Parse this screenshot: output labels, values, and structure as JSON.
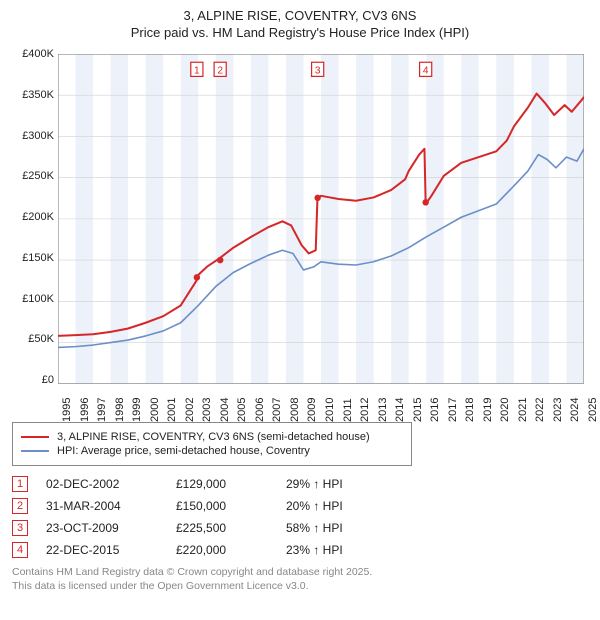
{
  "title_line1": "3, ALPINE RISE, COVENTRY, CV3 6NS",
  "title_line2": "Price paid vs. HM Land Registry's House Price Index (HPI)",
  "title_fontsize": 13,
  "chart": {
    "type": "line",
    "background_color": "#ffffff",
    "plot_background": "#ffffff",
    "altband_color": "#edf2fa",
    "grid_color": "#d0d0d0",
    "ylim": [
      0,
      400000
    ],
    "ytick_step": 50000,
    "yticks_labels": [
      "£0",
      "£50K",
      "£100K",
      "£150K",
      "£200K",
      "£250K",
      "£300K",
      "£350K",
      "£400K"
    ],
    "xlim": [
      1995,
      2025
    ],
    "xticks": [
      1995,
      1996,
      1997,
      1998,
      1999,
      2000,
      2001,
      2002,
      2003,
      2004,
      2005,
      2006,
      2007,
      2008,
      2009,
      2010,
      2011,
      2012,
      2013,
      2014,
      2015,
      2016,
      2017,
      2018,
      2019,
      2020,
      2021,
      2022,
      2023,
      2024,
      2025
    ],
    "label_fontsize": 11,
    "series": [
      {
        "name": "3, ALPINE RISE, COVENTRY, CV3 6NS (semi-detached house)",
        "color": "#d62728",
        "line_width": 2,
        "points": [
          [
            1995,
            58000
          ],
          [
            1996,
            59000
          ],
          [
            1997,
            60000
          ],
          [
            1998,
            63000
          ],
          [
            1999,
            67000
          ],
          [
            2000,
            74000
          ],
          [
            2001,
            82000
          ],
          [
            2002,
            95000
          ],
          [
            2002.9,
            125000
          ],
          [
            2003,
            132000
          ],
          [
            2003.5,
            142000
          ],
          [
            2004.2,
            152000
          ],
          [
            2005,
            165000
          ],
          [
            2006,
            178000
          ],
          [
            2007,
            190000
          ],
          [
            2007.8,
            197000
          ],
          [
            2008.3,
            192000
          ],
          [
            2008.9,
            168000
          ],
          [
            2009.3,
            158000
          ],
          [
            2009.7,
            162000
          ],
          [
            2009.8,
            225000
          ],
          [
            2010,
            228000
          ],
          [
            2011,
            224000
          ],
          [
            2012,
            222000
          ],
          [
            2013,
            226000
          ],
          [
            2014,
            235000
          ],
          [
            2014.8,
            248000
          ],
          [
            2015,
            258000
          ],
          [
            2015.6,
            278000
          ],
          [
            2015.9,
            285000
          ],
          [
            2015.97,
            218000
          ],
          [
            2016.3,
            228000
          ],
          [
            2017,
            252000
          ],
          [
            2018,
            268000
          ],
          [
            2019,
            275000
          ],
          [
            2020,
            282000
          ],
          [
            2020.6,
            295000
          ],
          [
            2021,
            312000
          ],
          [
            2021.8,
            335000
          ],
          [
            2022.3,
            352000
          ],
          [
            2022.8,
            340000
          ],
          [
            2023.3,
            326000
          ],
          [
            2023.9,
            338000
          ],
          [
            2024.3,
            330000
          ],
          [
            2024.9,
            345000
          ],
          [
            2025,
            348000
          ]
        ]
      },
      {
        "name": "HPI: Average price, semi-detached house, Coventry",
        "color": "#6b8fc9",
        "line_width": 1.6,
        "points": [
          [
            1995,
            44000
          ],
          [
            1996,
            45000
          ],
          [
            1997,
            47000
          ],
          [
            1998,
            50000
          ],
          [
            1999,
            53000
          ],
          [
            2000,
            58000
          ],
          [
            2001,
            64000
          ],
          [
            2002,
            74000
          ],
          [
            2003,
            95000
          ],
          [
            2004,
            118000
          ],
          [
            2005,
            135000
          ],
          [
            2006,
            146000
          ],
          [
            2007,
            156000
          ],
          [
            2007.8,
            162000
          ],
          [
            2008.4,
            158000
          ],
          [
            2009,
            138000
          ],
          [
            2009.6,
            142000
          ],
          [
            2010,
            148000
          ],
          [
            2011,
            145000
          ],
          [
            2012,
            144000
          ],
          [
            2013,
            148000
          ],
          [
            2014,
            155000
          ],
          [
            2015,
            165000
          ],
          [
            2016,
            178000
          ],
          [
            2017,
            190000
          ],
          [
            2018,
            202000
          ],
          [
            2019,
            210000
          ],
          [
            2020,
            218000
          ],
          [
            2021,
            240000
          ],
          [
            2021.8,
            258000
          ],
          [
            2022.4,
            278000
          ],
          [
            2022.9,
            272000
          ],
          [
            2023.4,
            262000
          ],
          [
            2024,
            275000
          ],
          [
            2024.6,
            270000
          ],
          [
            2025,
            285000
          ]
        ]
      }
    ],
    "sale_markers": [
      {
        "num": "1",
        "x": 2002.92,
        "y": 129000,
        "color": "#d62728"
      },
      {
        "num": "2",
        "x": 2004.25,
        "y": 150000,
        "color": "#d62728"
      },
      {
        "num": "3",
        "x": 2009.81,
        "y": 225500,
        "color": "#d62728"
      },
      {
        "num": "4",
        "x": 2015.97,
        "y": 220000,
        "color": "#d62728"
      }
    ],
    "marker_box_top_y": 390000
  },
  "legend": {
    "items": [
      {
        "color": "#d62728",
        "label": "3, ALPINE RISE, COVENTRY, CV3 6NS (semi-detached house)"
      },
      {
        "color": "#6b8fc9",
        "label": "HPI: Average price, semi-detached house, Coventry"
      }
    ]
  },
  "events": [
    {
      "num": "1",
      "date": "02-DEC-2002",
      "price": "£129,000",
      "delta": "29% ↑ HPI",
      "color": "#d62728"
    },
    {
      "num": "2",
      "date": "31-MAR-2004",
      "price": "£150,000",
      "delta": "20% ↑ HPI",
      "color": "#d62728"
    },
    {
      "num": "3",
      "date": "23-OCT-2009",
      "price": "£225,500",
      "delta": "58% ↑ HPI",
      "color": "#d62728"
    },
    {
      "num": "4",
      "date": "22-DEC-2015",
      "price": "£220,000",
      "delta": "23% ↑ HPI",
      "color": "#d62728"
    }
  ],
  "footer_line1": "Contains HM Land Registry data © Crown copyright and database right 2025.",
  "footer_line2": "This data is licensed under the Open Government Licence v3.0."
}
